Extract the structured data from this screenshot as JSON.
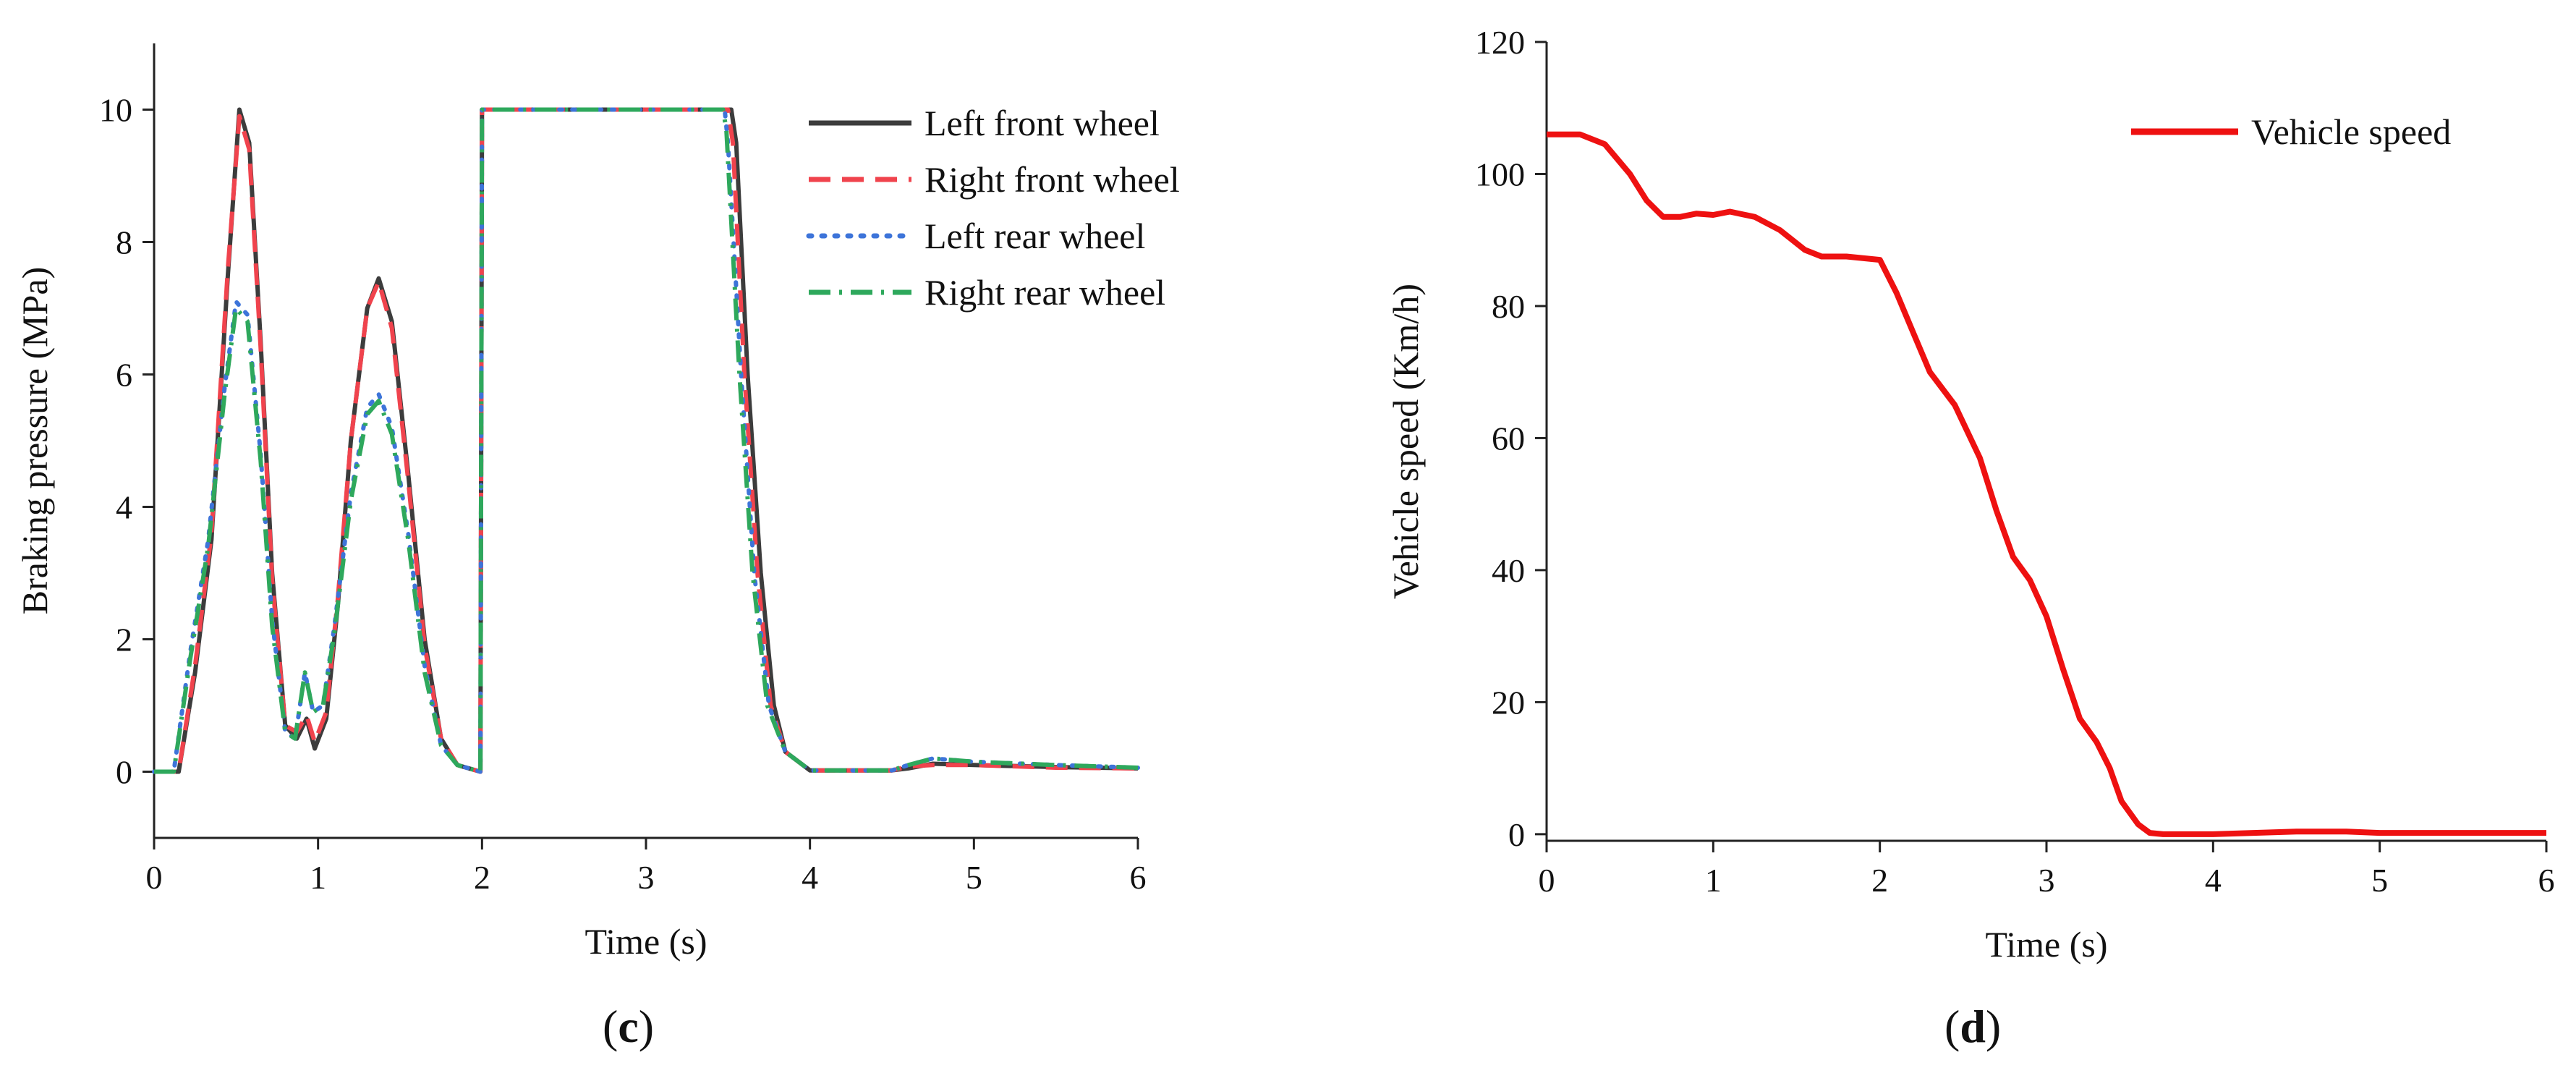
{
  "chart_data": [
    {
      "panel_label": "c",
      "type": "line",
      "xlabel": "Time (s)",
      "ylabel": "Braking pressure (MPa)",
      "xlim": [
        0,
        6
      ],
      "ylim": [
        -1,
        11
      ],
      "xticks": [
        0,
        1,
        2,
        3,
        4,
        5,
        6
      ],
      "yticks": [
        0,
        2,
        4,
        6,
        8,
        10
      ],
      "grid": false,
      "legend_position": "top-right",
      "series": [
        {
          "name": "Left front wheel",
          "color": "#3c3c3c",
          "style": "solid",
          "points": [
            [
              0,
              0
            ],
            [
              0.15,
              0
            ],
            [
              0.25,
              1.5
            ],
            [
              0.35,
              3.5
            ],
            [
              0.45,
              7.5
            ],
            [
              0.52,
              10
            ],
            [
              0.58,
              9.5
            ],
            [
              0.65,
              6.5
            ],
            [
              0.72,
              3
            ],
            [
              0.8,
              0.7
            ],
            [
              0.87,
              0.5
            ],
            [
              0.93,
              0.8
            ],
            [
              0.98,
              0.35
            ],
            [
              1.05,
              0.8
            ],
            [
              1.12,
              2.5
            ],
            [
              1.2,
              5
            ],
            [
              1.3,
              7
            ],
            [
              1.37,
              7.45
            ],
            [
              1.45,
              6.8
            ],
            [
              1.55,
              4.5
            ],
            [
              1.65,
              2
            ],
            [
              1.75,
              0.5
            ],
            [
              1.85,
              0.1
            ],
            [
              1.99,
              0
            ],
            [
              2.0,
              10
            ],
            [
              3.52,
              10
            ],
            [
              3.55,
              9.5
            ],
            [
              3.62,
              6
            ],
            [
              3.7,
              3
            ],
            [
              3.78,
              1
            ],
            [
              3.85,
              0.3
            ],
            [
              4.0,
              0.02
            ],
            [
              4.5,
              0.02
            ],
            [
              4.6,
              0.05
            ],
            [
              4.75,
              0.12
            ],
            [
              5.0,
              0.1
            ],
            [
              5.5,
              0.07
            ],
            [
              6.0,
              0.05
            ]
          ]
        },
        {
          "name": "Right front wheel",
          "color": "#f0434d",
          "style": "dashed",
          "points": [
            [
              0,
              0
            ],
            [
              0.15,
              0
            ],
            [
              0.25,
              1.6
            ],
            [
              0.35,
              3.6
            ],
            [
              0.45,
              7.6
            ],
            [
              0.52,
              9.9
            ],
            [
              0.58,
              9.4
            ],
            [
              0.65,
              6.4
            ],
            [
              0.72,
              2.9
            ],
            [
              0.8,
              0.7
            ],
            [
              0.87,
              0.6
            ],
            [
              0.93,
              0.85
            ],
            [
              0.98,
              0.45
            ],
            [
              1.05,
              0.9
            ],
            [
              1.12,
              2.6
            ],
            [
              1.2,
              5
            ],
            [
              1.3,
              7
            ],
            [
              1.37,
              7.4
            ],
            [
              1.45,
              6.7
            ],
            [
              1.55,
              4.4
            ],
            [
              1.65,
              1.9
            ],
            [
              1.75,
              0.5
            ],
            [
              1.85,
              0.1
            ],
            [
              1.99,
              0
            ],
            [
              2.0,
              10
            ],
            [
              3.5,
              10
            ],
            [
              3.53,
              9.5
            ],
            [
              3.6,
              6
            ],
            [
              3.68,
              3
            ],
            [
              3.76,
              1
            ],
            [
              3.85,
              0.3
            ],
            [
              4.0,
              0.02
            ],
            [
              4.5,
              0.02
            ],
            [
              4.6,
              0.08
            ],
            [
              4.75,
              0.1
            ],
            [
              5.0,
              0.1
            ],
            [
              5.5,
              0.06
            ],
            [
              6.0,
              0.05
            ]
          ]
        },
        {
          "name": "Left rear wheel",
          "color": "#3d74d9",
          "style": "dotted",
          "points": [
            [
              0,
              0
            ],
            [
              0.12,
              0
            ],
            [
              0.22,
              1.8
            ],
            [
              0.33,
              3.5
            ],
            [
              0.43,
              5.8
            ],
            [
              0.5,
              7.1
            ],
            [
              0.57,
              6.9
            ],
            [
              0.65,
              4.8
            ],
            [
              0.72,
              2.3
            ],
            [
              0.8,
              0.6
            ],
            [
              0.86,
              0.5
            ],
            [
              0.92,
              1.5
            ],
            [
              0.97,
              0.9
            ],
            [
              1.03,
              1
            ],
            [
              1.1,
              2.2
            ],
            [
              1.2,
              4.2
            ],
            [
              1.3,
              5.5
            ],
            [
              1.37,
              5.7
            ],
            [
              1.45,
              5.2
            ],
            [
              1.55,
              3.6
            ],
            [
              1.65,
              1.6
            ],
            [
              1.75,
              0.4
            ],
            [
              1.85,
              0.1
            ],
            [
              1.99,
              0
            ],
            [
              2.0,
              10
            ],
            [
              3.48,
              10
            ],
            [
              3.5,
              9.5
            ],
            [
              3.58,
              6
            ],
            [
              3.66,
              3
            ],
            [
              3.75,
              1
            ],
            [
              3.85,
              0.3
            ],
            [
              4.0,
              0.02
            ],
            [
              4.5,
              0.02
            ],
            [
              4.6,
              0.1
            ],
            [
              4.75,
              0.2
            ],
            [
              5.0,
              0.15
            ],
            [
              5.5,
              0.1
            ],
            [
              6.0,
              0.06
            ]
          ]
        },
        {
          "name": "Right rear wheel",
          "color": "#2ea85c",
          "style": "dashdot",
          "points": [
            [
              0,
              0
            ],
            [
              0.12,
              0
            ],
            [
              0.22,
              1.7
            ],
            [
              0.33,
              3.4
            ],
            [
              0.43,
              5.7
            ],
            [
              0.5,
              7.0
            ],
            [
              0.57,
              6.8
            ],
            [
              0.65,
              4.7
            ],
            [
              0.72,
              2.2
            ],
            [
              0.8,
              0.6
            ],
            [
              0.86,
              0.5
            ],
            [
              0.92,
              1.5
            ],
            [
              0.97,
              0.9
            ],
            [
              1.03,
              1
            ],
            [
              1.1,
              2.1
            ],
            [
              1.2,
              4.1
            ],
            [
              1.3,
              5.4
            ],
            [
              1.37,
              5.6
            ],
            [
              1.45,
              5.1
            ],
            [
              1.55,
              3.5
            ],
            [
              1.65,
              1.5
            ],
            [
              1.75,
              0.4
            ],
            [
              1.85,
              0.1
            ],
            [
              1.99,
              0
            ],
            [
              2.0,
              10
            ],
            [
              3.47,
              10
            ],
            [
              3.49,
              9.7
            ],
            [
              3.57,
              6
            ],
            [
              3.65,
              3
            ],
            [
              3.74,
              1
            ],
            [
              3.85,
              0.3
            ],
            [
              4.0,
              0.02
            ],
            [
              4.5,
              0.02
            ],
            [
              4.6,
              0.1
            ],
            [
              4.75,
              0.2
            ],
            [
              5.0,
              0.15
            ],
            [
              5.5,
              0.1
            ],
            [
              6.0,
              0.06
            ]
          ]
        }
      ]
    },
    {
      "panel_label": "d",
      "type": "line",
      "xlabel": "Time (s)",
      "ylabel": "Vehicle speed (Km/h)",
      "xlim": [
        0,
        6
      ],
      "ylim": [
        -1,
        120
      ],
      "xticks": [
        0,
        1,
        2,
        3,
        4,
        5,
        6
      ],
      "yticks": [
        0,
        20,
        40,
        60,
        80,
        100,
        120
      ],
      "grid": false,
      "legend_position": "top-right",
      "series": [
        {
          "name": "Vehicle speed",
          "color": "#ee1111",
          "style": "solid",
          "points": [
            [
              0,
              106
            ],
            [
              0.2,
              106
            ],
            [
              0.35,
              104.5
            ],
            [
              0.5,
              100
            ],
            [
              0.6,
              96
            ],
            [
              0.7,
              93.5
            ],
            [
              0.8,
              93.5
            ],
            [
              0.9,
              94
            ],
            [
              1.0,
              93.8
            ],
            [
              1.1,
              94.3
            ],
            [
              1.25,
              93.5
            ],
            [
              1.4,
              91.5
            ],
            [
              1.55,
              88.5
            ],
            [
              1.65,
              87.5
            ],
            [
              1.8,
              87.5
            ],
            [
              2.0,
              87
            ],
            [
              2.1,
              82
            ],
            [
              2.2,
              76
            ],
            [
              2.3,
              70
            ],
            [
              2.45,
              65
            ],
            [
              2.6,
              57
            ],
            [
              2.7,
              49
            ],
            [
              2.8,
              42
            ],
            [
              2.9,
              38.5
            ],
            [
              3.0,
              33
            ],
            [
              3.1,
              25
            ],
            [
              3.2,
              17.5
            ],
            [
              3.3,
              14
            ],
            [
              3.38,
              10
            ],
            [
              3.45,
              5
            ],
            [
              3.55,
              1.5
            ],
            [
              3.62,
              0.2
            ],
            [
              3.7,
              0
            ],
            [
              4.0,
              0
            ],
            [
              4.5,
              0.4
            ],
            [
              4.8,
              0.4
            ],
            [
              5.0,
              0.2
            ],
            [
              5.5,
              0.2
            ],
            [
              6.0,
              0.2
            ]
          ]
        }
      ]
    }
  ]
}
